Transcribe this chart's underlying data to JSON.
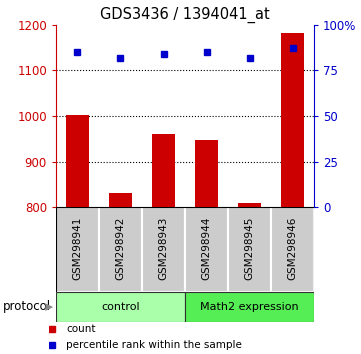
{
  "title": "GDS3436 / 1394041_at",
  "samples": [
    "GSM298941",
    "GSM298942",
    "GSM298943",
    "GSM298944",
    "GSM298945",
    "GSM298946"
  ],
  "bar_values": [
    1001,
    831,
    960,
    948,
    810,
    1182
  ],
  "percentile_values": [
    85,
    82,
    84,
    85,
    82,
    87
  ],
  "bar_color": "#cc0000",
  "percentile_color": "#0000cc",
  "ylim_left": [
    800,
    1200
  ],
  "ylim_right": [
    0,
    100
  ],
  "yticks_left": [
    800,
    900,
    1000,
    1100,
    1200
  ],
  "yticks_right": [
    0,
    25,
    50,
    75,
    100
  ],
  "grid_values": [
    900,
    1000,
    1100
  ],
  "groups": [
    {
      "label": "control",
      "start": 0,
      "end": 3,
      "color": "#aaffaa"
    },
    {
      "label": "Math2 expression",
      "start": 3,
      "end": 6,
      "color": "#55ee55"
    }
  ],
  "protocol_label": "protocol",
  "bar_bottom": 800,
  "sample_box_color": "#cccccc",
  "xlabel_color": "#cc0000",
  "ylabel_right_color": "#0000cc"
}
